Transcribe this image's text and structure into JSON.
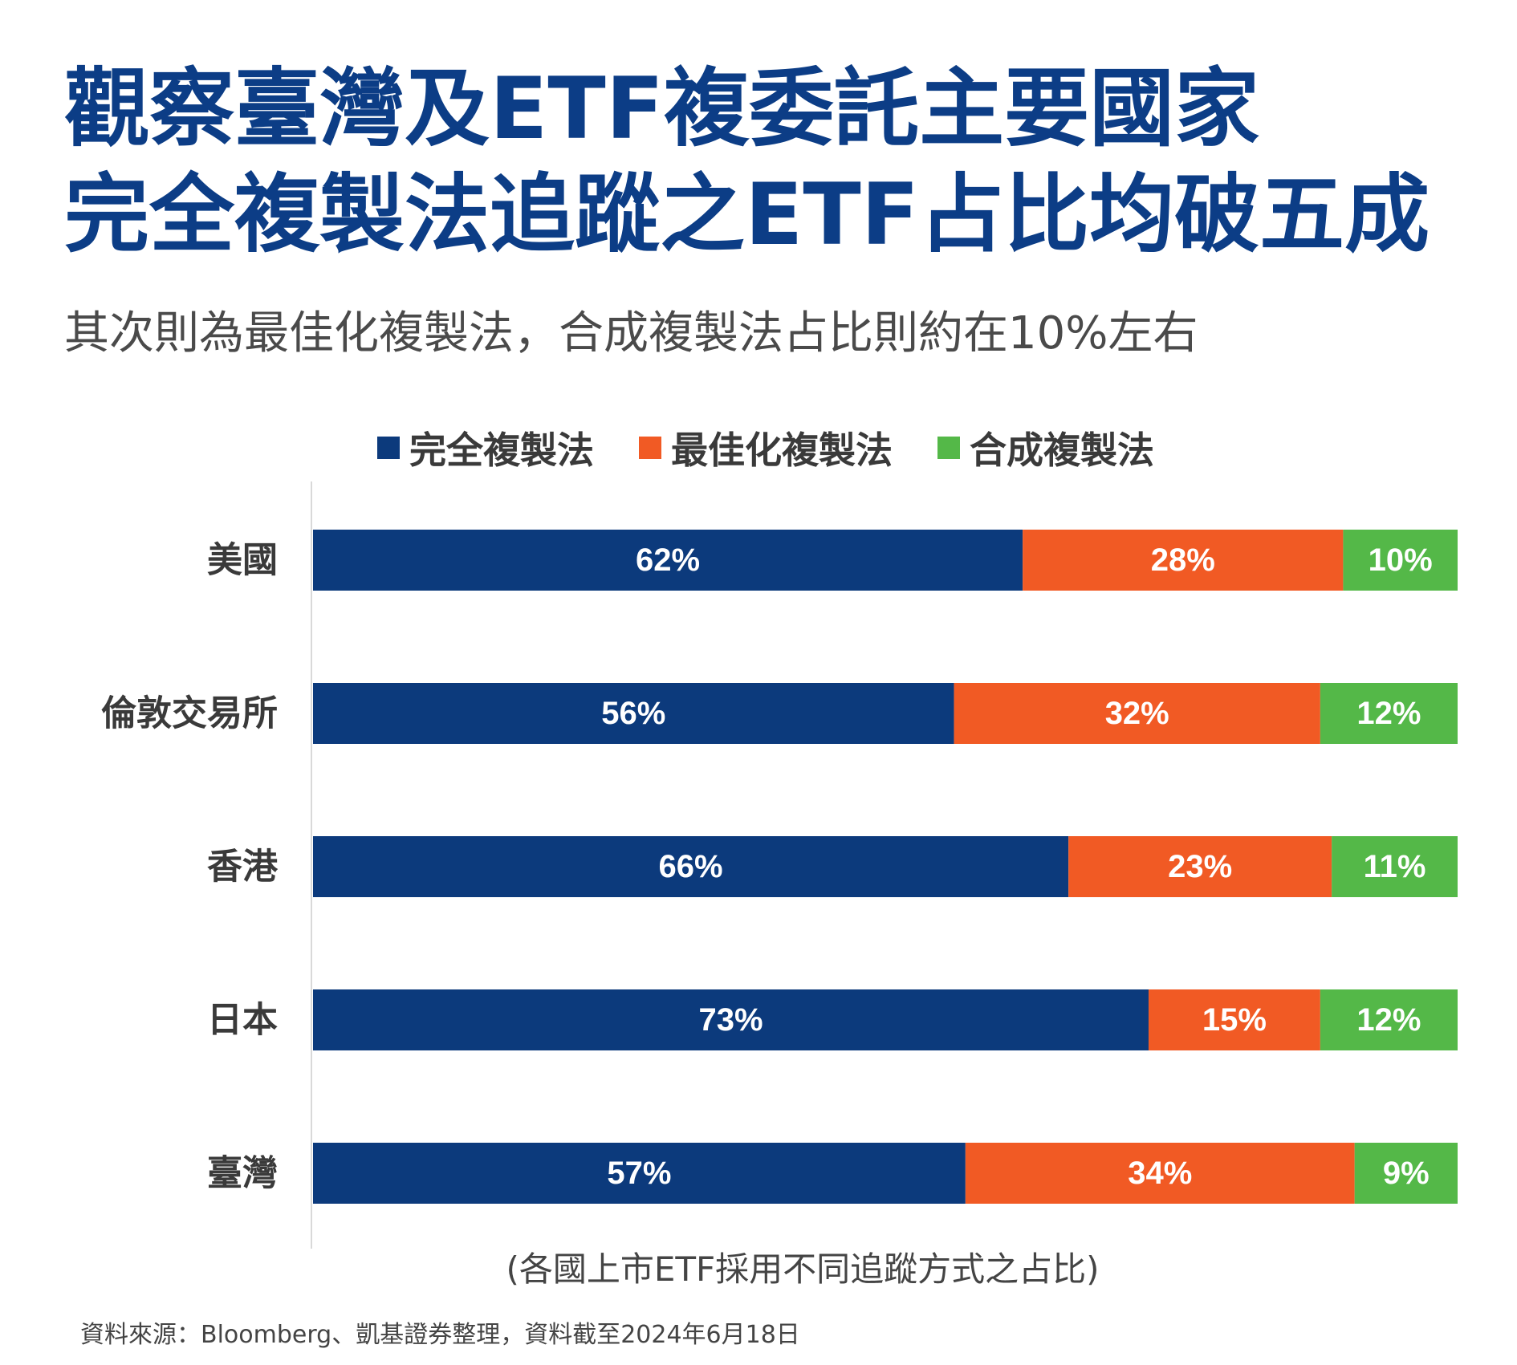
{
  "title": {
    "line1": "觀察臺灣及ETF複委託主要國家",
    "line2": "完全複製法追蹤之ETF占比均破五成"
  },
  "subtitle": "其次則為最佳化複製法，合成複製法占比則約在10%左右",
  "chart_data": {
    "type": "bar",
    "orientation": "horizontal",
    "stacked": true,
    "legend_position": "top",
    "grid": false,
    "categories": [
      "美國",
      "倫敦交易所",
      "香港",
      "日本",
      "臺灣"
    ],
    "series": [
      {
        "name": "完全複製法",
        "color": "#0c3a7c",
        "values": [
          62,
          56,
          66,
          73,
          57
        ],
        "labels": [
          "62%",
          "56%",
          "66%",
          "73%",
          "57%"
        ]
      },
      {
        "name": "最佳化複製法",
        "color": "#f15a24",
        "values": [
          28,
          32,
          23,
          15,
          34
        ],
        "labels": [
          "28%",
          "32%",
          "23%",
          "15%",
          "34%"
        ]
      },
      {
        "name": "合成複製法",
        "color": "#54b848",
        "values": [
          10,
          12,
          11,
          12,
          9
        ],
        "labels": [
          "10%",
          "12%",
          "11%",
          "12%",
          "9%"
        ]
      }
    ],
    "xlim": [
      0,
      100
    ],
    "xlabel": "(各國上市ETF採用不同追蹤方式之占比)"
  },
  "source": "資料來源：Bloomberg、凱基證券整理，資料截至2024年6月18日"
}
